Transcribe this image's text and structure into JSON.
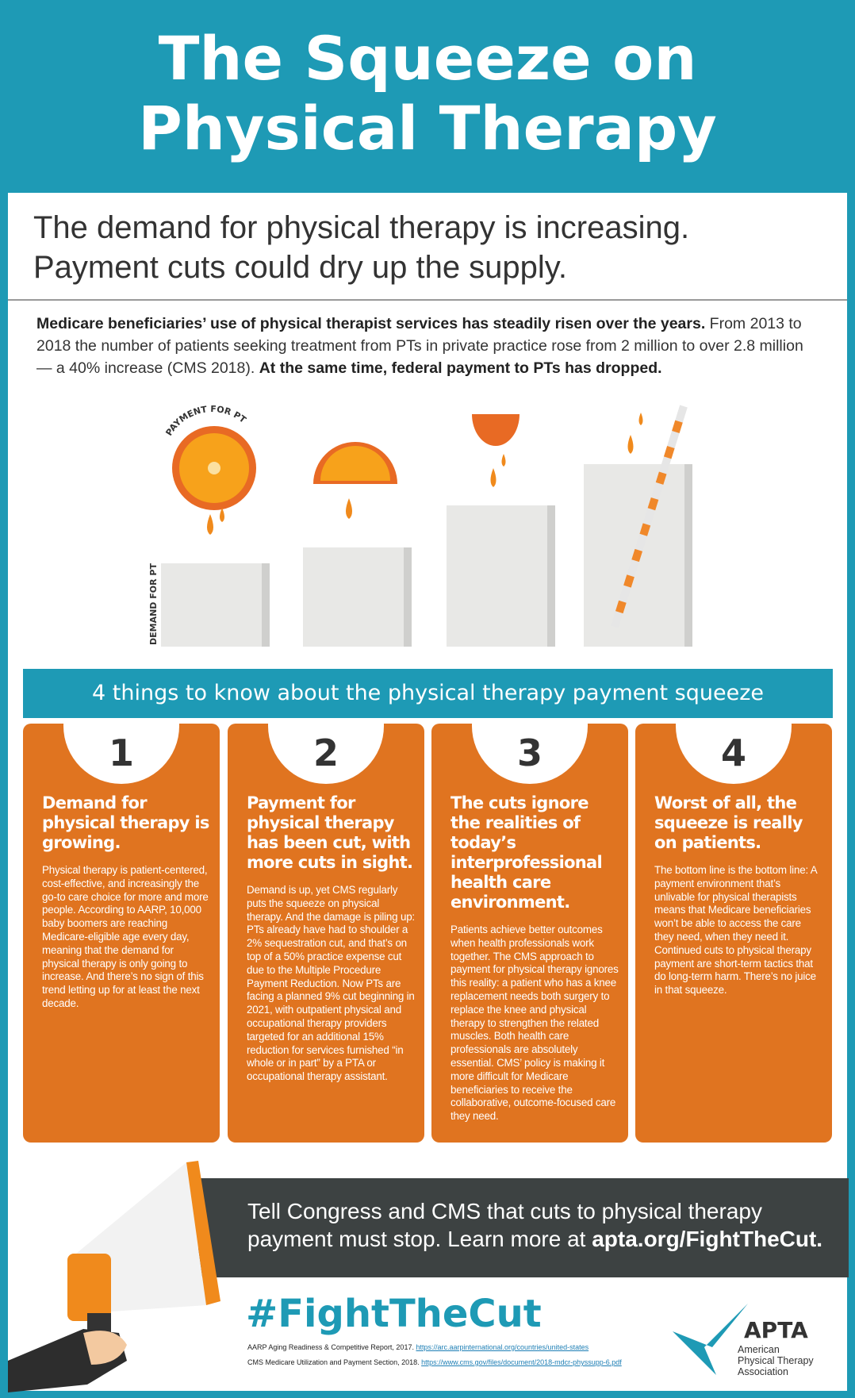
{
  "header": {
    "title_line1": "The Squeeze on",
    "title_line2": "Physical Therapy"
  },
  "subtitle": {
    "line1": "The demand for physical therapy is increasing.",
    "line2": "Payment cuts could dry up the supply."
  },
  "intro": {
    "bold1": "Medicare beneficiaries’ use of physical therapist services has steadily risen over the years.",
    "text": " From 2013 to 2018 the number of patients seeking treatment from PTs in private practice rose from 2 million to over 2.8 million — a 40% increase (CMS 2018). ",
    "bold2": "At the same time, federal payment to PTs has dropped."
  },
  "illustration": {
    "payment_label": "PAYMENT FOR PT",
    "demand_label": "DEMAND FOR PT"
  },
  "banner": "4 things to know about the physical therapy payment squeeze",
  "cards": [
    {
      "num": "1",
      "heading": "Demand for physical therapy is growing.",
      "body": "Physical therapy is patient-centered, cost-effective, and increasingly the go-to care choice for more and more people. According to AARP, 10,000 baby boomers are reaching Medicare-eligible age every day, meaning that the demand for physical therapy is only going to increase. And there’s no sign of this trend letting up for at least the next decade."
    },
    {
      "num": "2",
      "heading": "Payment for physical therapy has been cut, with more cuts in sight.",
      "body": "Demand is up, yet CMS regularly puts the squeeze on physical therapy. And the damage is piling up: PTs already have had to shoulder a 2% sequestration cut, and that’s on top of a 50% practice expense cut due to the Multiple Procedure Payment Reduction. Now PTs are facing a planned 9% cut beginning in 2021, with outpatient physical and occupational therapy providers targeted for an additional 15% reduction for services furnished “in whole or in part” by a PTA or occupational therapy assistant."
    },
    {
      "num": "3",
      "heading": "The cuts ignore the realities of today’s interprofessional health care environment.",
      "body": "Patients achieve better outcomes when health professionals work together. The CMS approach to payment for physical therapy ignores this reality: a patient who has a knee replacement needs both surgery to replace the knee and physical therapy to strengthen the related muscles. Both health care professionals are absolutely essential. CMS’ policy is making it more difficult for Medicare beneficiaries to receive the collaborative, outcome-focused care they need."
    },
    {
      "num": "4",
      "heading": "Worst of all, the squeeze is really on patients.",
      "body": "The bottom line is the bottom line: A payment environment that’s unlivable for physical therapists means that Medicare beneficiaries won’t be able to access the care they need, when they need it. Continued cuts to physical therapy payment are short-term tactics that do long-term harm. There’s no juice in that squeeze."
    }
  ],
  "cta": {
    "text": "Tell Congress and CMS that cuts to physical therapy payment must stop. Learn more at ",
    "link": "apta.org/FightTheCut."
  },
  "hashtag": "#FightTheCut",
  "references": [
    {
      "text": "AARP Aging Readiness & Competitive Report, 2017. ",
      "url": "https://arc.aarpinternational.org/countries/united-states"
    },
    {
      "text": "CMS Medicare Utilization and Payment Section, 2018. ",
      "url": "https://www.cms.gov/files/document/2018-mdcr-physsupp-6.pdf"
    }
  ],
  "logo": {
    "abbr": "APTA",
    "line1": "American",
    "line2": "Physical Therapy",
    "line3": "Association"
  },
  "colors": {
    "teal": "#1e9ab5",
    "orange": "#e07420",
    "dark": "#3d4242"
  }
}
